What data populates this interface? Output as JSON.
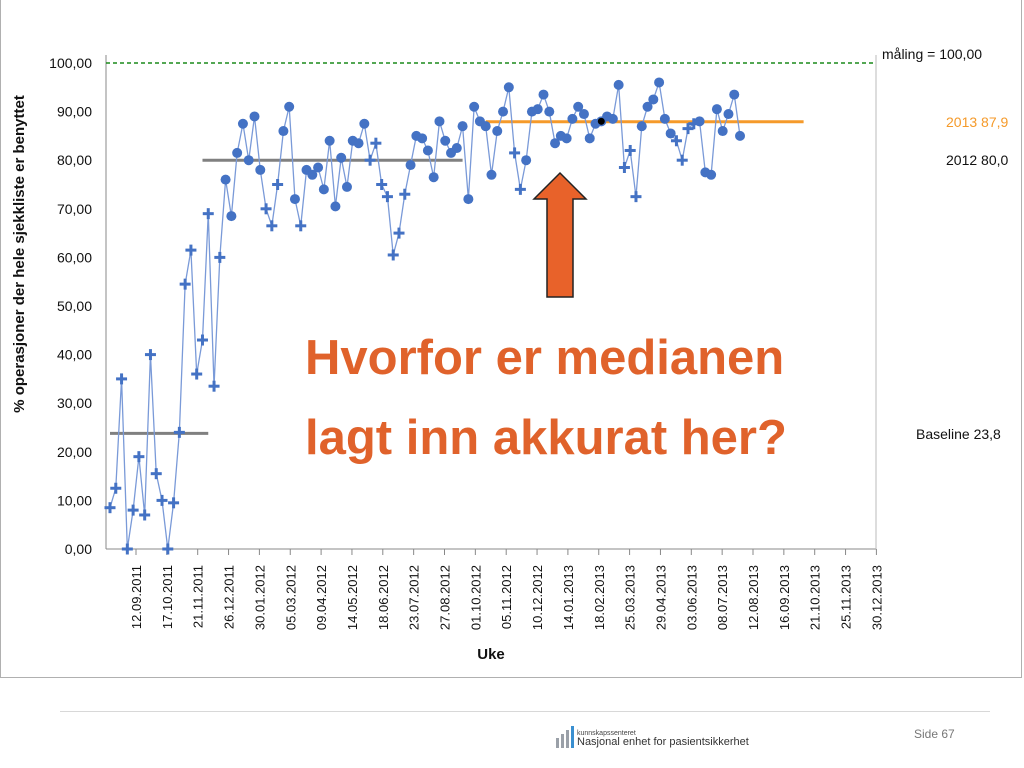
{
  "slide": {
    "question_line1": "Hvorfor er medianen",
    "question_line2": "lagt inn akkurat her?",
    "page_number": "Side 67",
    "logo_top": "kunnskapssenteret",
    "logo_main": "Nasjonal enhet for pasientsikkerhet"
  },
  "colors": {
    "series": "#4472c4",
    "series_line": "#7a9ad8",
    "target": "#1a8a1a",
    "median_2013": "#f59a2a",
    "median_2012": "#808080",
    "baseline": "#808080",
    "question_text": "#e0622b",
    "arrow": "#e8622a"
  },
  "chart_data": {
    "type": "line",
    "ylabel": "% operasjoner der hele sjekkliste er benyttet",
    "xlabel": "Uke",
    "ylim": [
      0,
      100
    ],
    "y_ticks": [
      "0,00",
      "10,00",
      "20,00",
      "30,00",
      "40,00",
      "50,00",
      "60,00",
      "70,00",
      "80,00",
      "90,00",
      "100,00"
    ],
    "x_ticks": [
      "12.09.2011",
      "17.10.2011",
      "21.11.2011",
      "26.12.2011",
      "30.01.2012",
      "05.03.2012",
      "09.04.2012",
      "14.05.2012",
      "18.06.2012",
      "23.07.2012",
      "27.08.2012",
      "01.10.2012",
      "05.11.2012",
      "10.12.2012",
      "14.01.2013",
      "18.02.2013",
      "25.03.2013",
      "29.04.2013",
      "03.06.2013",
      "08.07.2013",
      "12.08.2013",
      "16.09.2013",
      "21.10.2013",
      "25.11.2013",
      "30.12.2013"
    ],
    "reference_lines": [
      {
        "label": "måling = 100,00",
        "value": 100,
        "style": "dashed",
        "color": "#1a8a1a"
      },
      {
        "label": "2013 87,9",
        "value": 87.9,
        "from_week": 65,
        "to_week": 120,
        "color": "#f59a2a"
      },
      {
        "label": "2012 80,0",
        "value": 80.0,
        "from_week": 16,
        "to_week": 61,
        "color": "#808080"
      },
      {
        "label": "Baseline 23,8",
        "value": 23.8,
        "from_week": 0,
        "to_week": 17,
        "color": "#808080"
      }
    ],
    "series": [
      {
        "values": [
          8.5,
          12.5,
          35,
          0,
          8,
          19,
          7,
          40,
          15.5,
          10,
          0,
          9.5,
          24,
          54.5,
          61.5,
          36,
          43,
          69,
          33.5,
          60,
          76,
          68.5,
          81.5,
          87.5,
          80,
          89,
          78,
          70,
          66.5,
          75,
          86,
          91,
          72,
          66.5,
          78,
          77,
          78.5,
          74,
          84,
          70.5,
          80.5,
          74.5,
          84,
          83.5,
          87.5,
          80,
          83.5,
          75,
          72.5,
          60.5,
          65,
          73,
          79,
          85,
          84.5,
          82,
          76.5,
          88,
          84,
          81.5,
          82.5,
          87,
          72,
          91,
          88,
          87,
          77,
          86,
          90,
          95,
          81.5,
          74,
          80,
          90,
          90.5,
          93.5,
          90,
          83.5,
          85,
          84.5,
          88.5,
          91,
          89.5,
          84.5,
          87.5,
          88,
          89,
          88.5,
          95.5,
          78.5,
          82,
          72.5,
          87,
          91,
          92.5,
          96,
          88.5,
          85.5,
          84,
          80,
          86.5,
          87.5,
          88,
          77.5,
          77,
          90.5,
          86,
          89.5,
          93.5,
          85
        ],
        "markers": [
          "+",
          "+",
          "+",
          "+",
          "+",
          "+",
          "+",
          "+",
          "+",
          "+",
          "+",
          "+",
          "+",
          "+",
          "+",
          "+",
          "+",
          "+",
          "+",
          "+",
          "o",
          "o",
          "o",
          "o",
          "o",
          "o",
          "o",
          "+",
          "+",
          "+",
          "o",
          "o",
          "o",
          "+",
          "o",
          "o",
          "o",
          "o",
          "o",
          "o",
          "o",
          "o",
          "o",
          "o",
          "o",
          "+",
          "+",
          "+",
          "+",
          "+",
          "+",
          "+",
          "o",
          "o",
          "o",
          "o",
          "o",
          "o",
          "o",
          "o",
          "o",
          "o",
          "o",
          "o",
          "o",
          "o",
          "o",
          "o",
          "o",
          "o",
          "+",
          "+",
          "o",
          "o",
          "o",
          "o",
          "o",
          "o",
          "o",
          "o",
          "o",
          "o",
          "o",
          "o",
          "o",
          "o",
          "o",
          "o",
          "o",
          "+",
          "+",
          "+",
          "o",
          "o",
          "o",
          "o",
          "o",
          "o",
          "+",
          "+",
          "+",
          "+",
          "o",
          "o",
          "o",
          "o",
          "o",
          "o",
          "o",
          "o"
        ]
      }
    ],
    "highlight_point": {
      "week": 85,
      "value": 88
    }
  }
}
